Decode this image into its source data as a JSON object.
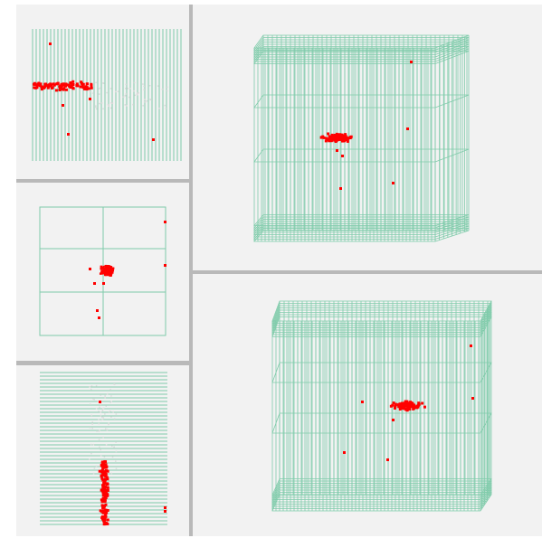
{
  "viewer": {
    "views": [
      {
        "name": "top-view",
        "label": ""
      },
      {
        "name": "front-view",
        "label": ""
      },
      {
        "name": "side-view",
        "label": ""
      },
      {
        "name": "perspective-view-1",
        "label": ""
      },
      {
        "name": "perspective-view-2",
        "label": ""
      }
    ],
    "colors": {
      "background": "#f2f2f2",
      "grid": "#7fcbaa",
      "points": "#ff0000",
      "divider": "#b9b9b9"
    }
  }
}
